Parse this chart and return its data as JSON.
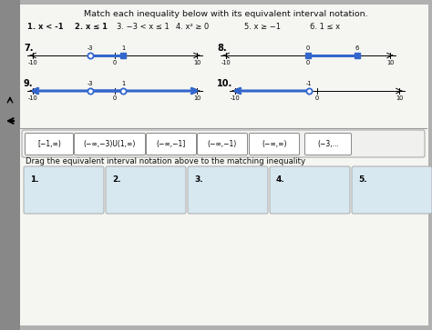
{
  "title": "Match each inequality below with its equivalent interval notation.",
  "bg_color": "#b0b0b0",
  "white_bg": "#f5f5f2",
  "sidebar_color": "#888888",
  "inequalities_line1": [
    "1. x < -1",
    "2. x ≤ 1",
    "3. −3 < x ≤ 1",
    "4. x² ≥ 0",
    "5. x ≥ −1",
    "6. 1 ≤ x"
  ],
  "ineq_bold": [
    true,
    true,
    false,
    false,
    false,
    false
  ],
  "nl7_label": "7.",
  "nl8_label": "8.",
  "nl9_label": "9.",
  "nl10_label": "10.",
  "line_color": "#3366cc",
  "axis_color": "#000000",
  "interval_boxes": [
    "[−1,∞)",
    "(−∞,−3)U(1,∞)",
    "(−∞,−1]",
    "(−∞,−1)",
    "(−∞,∞)",
    "(−3,..."
  ],
  "drag_label": "Drag the equivalent interval notation above to the matching inequality",
  "drag_boxes": [
    "1.",
    "2.",
    "3.",
    "4.",
    "5."
  ],
  "box_fill": "#d8e8f0",
  "interval_fill": "#ffffff",
  "interval_border": "#888888"
}
